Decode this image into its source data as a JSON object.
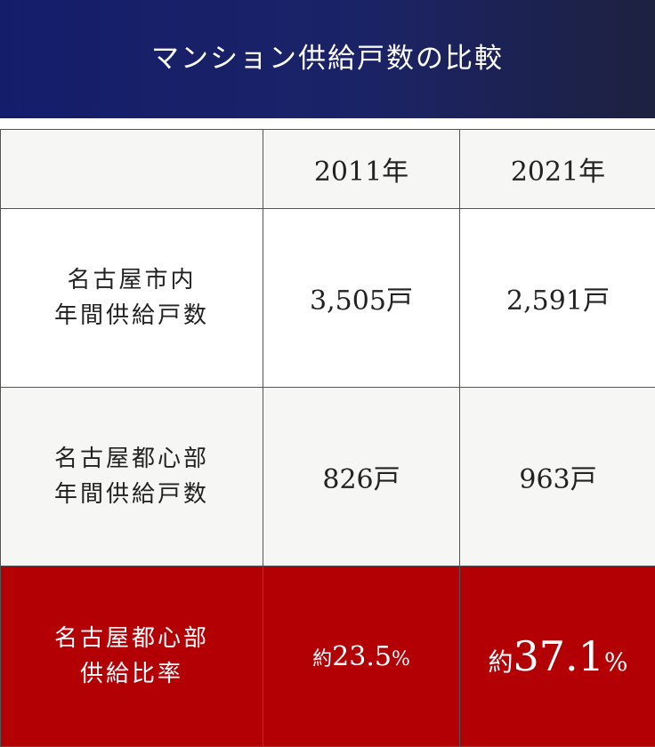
{
  "title": "マンション供給戸数の比較",
  "colors": {
    "header": "#141d6a",
    "highlight_row": "#b30005",
    "highlight_text": "#e3bf6a"
  },
  "chart_data": {
    "type": "table",
    "columns": [
      "",
      "2011年",
      "2021年"
    ],
    "rows": [
      {
        "label_lines": [
          "名古屋市内",
          "年間供給戸数"
        ],
        "values": [
          {
            "num": "3,505",
            "unit": "戸"
          },
          {
            "num": "2,591",
            "unit": "戸"
          }
        ]
      },
      {
        "label_lines": [
          "名古屋都心部",
          "年間供給戸数"
        ],
        "values": [
          {
            "num": "826",
            "unit": "戸"
          },
          {
            "num": "963",
            "unit": "戸"
          }
        ]
      },
      {
        "label_lines": [
          "名古屋都心部",
          "供給比率"
        ],
        "values": [
          {
            "prefix": "約",
            "num": "23.5",
            "unit": "%"
          },
          {
            "prefix": "約",
            "num": "37.1",
            "unit": "%"
          }
        ]
      }
    ]
  }
}
